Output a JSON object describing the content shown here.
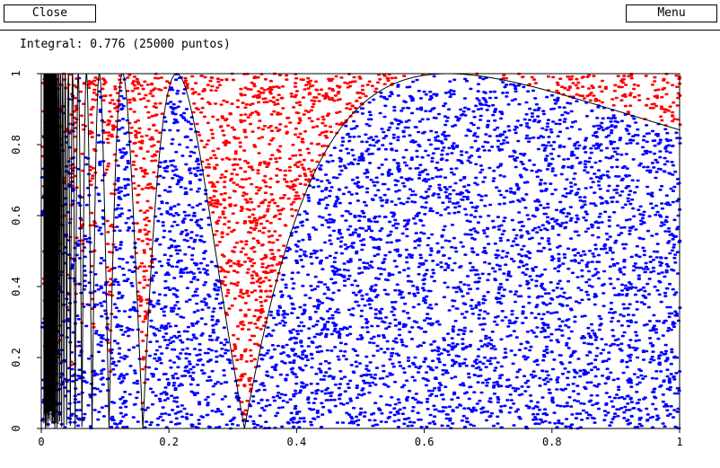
{
  "toolbar": {
    "close_label": "Close",
    "menu_label": "Menu"
  },
  "info": {
    "text": "Integral: 0.776 (25000 puntos)"
  },
  "colors": {
    "inside": "#0000ff",
    "outside": "#ff0000",
    "curve": "#000000",
    "frame": "#000000",
    "background": "#ffffff"
  },
  "chart_data": {
    "type": "scatter",
    "title": "",
    "xlabel": "",
    "ylabel": "",
    "xlim": [
      0,
      1
    ],
    "ylim": [
      0,
      1
    ],
    "grid": false,
    "points": 25000,
    "integral": 0.776,
    "function": "abs(sin(1/x))",
    "xticks": [
      "0",
      "0.2",
      "0.4",
      "0.6",
      "0.8",
      "1"
    ],
    "yticks": [
      "0",
      "0.2",
      "0.4",
      "0.6",
      "0.8",
      "1"
    ],
    "series": []
  }
}
